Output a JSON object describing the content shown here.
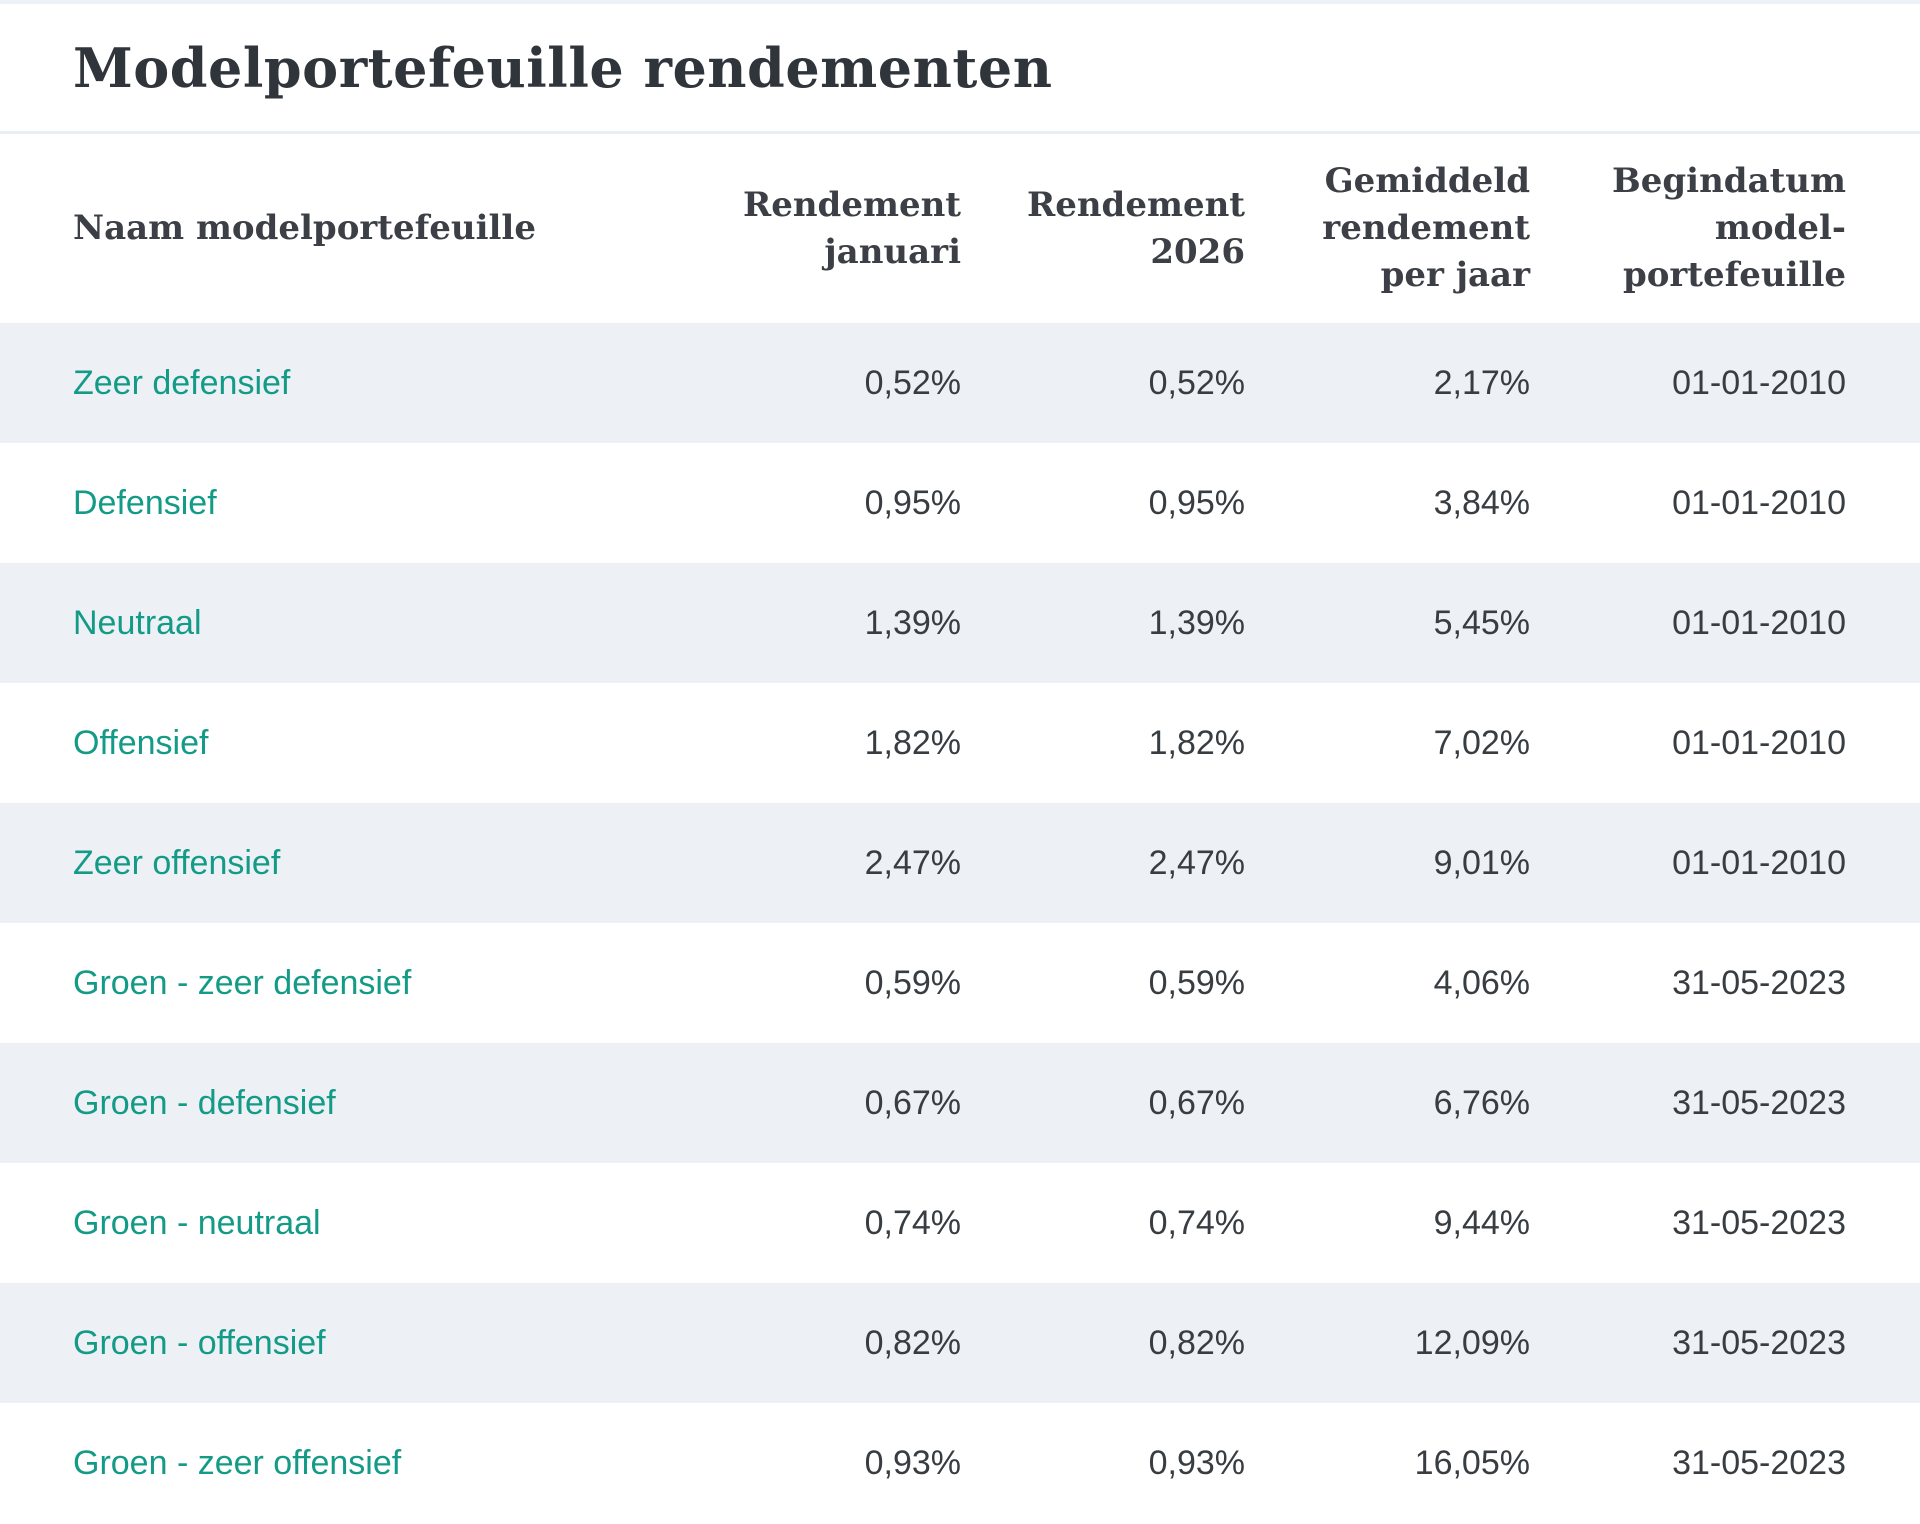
{
  "page": {
    "title": "Modelportefeuille rendementen"
  },
  "colors": {
    "accent_link": "#149b87",
    "row_alt_background": "#edf1f6",
    "divider": "#e9edf6",
    "top_strip": "#edf1f8",
    "title_text": "#2f353b",
    "header_text": "#3c4046",
    "value_text": "#383d42"
  },
  "table": {
    "columns": [
      {
        "label": "Naam modelportefeuille"
      },
      {
        "label": "Rendement\njanuari"
      },
      {
        "label": "Rendement\n2026"
      },
      {
        "label": "Gemiddeld\nrendement\nper jaar"
      },
      {
        "label": "Begindatum\nmodel-\nportefeuille"
      }
    ],
    "rows": [
      {
        "name": "Zeer defensief",
        "jan": "0,52%",
        "y2026": "0,52%",
        "avg": "2,17%",
        "start": "01-01-2010"
      },
      {
        "name": "Defensief",
        "jan": "0,95%",
        "y2026": "0,95%",
        "avg": "3,84%",
        "start": "01-01-2010"
      },
      {
        "name": "Neutraal",
        "jan": "1,39%",
        "y2026": "1,39%",
        "avg": "5,45%",
        "start": "01-01-2010"
      },
      {
        "name": "Offensief",
        "jan": "1,82%",
        "y2026": "1,82%",
        "avg": "7,02%",
        "start": "01-01-2010"
      },
      {
        "name": "Zeer offensief",
        "jan": "2,47%",
        "y2026": "2,47%",
        "avg": "9,01%",
        "start": "01-01-2010"
      },
      {
        "name": "Groen - zeer defensief",
        "jan": "0,59%",
        "y2026": "0,59%",
        "avg": "4,06%",
        "start": "31-05-2023"
      },
      {
        "name": "Groen - defensief",
        "jan": "0,67%",
        "y2026": "0,67%",
        "avg": "6,76%",
        "start": "31-05-2023"
      },
      {
        "name": "Groen - neutraal",
        "jan": "0,74%",
        "y2026": "0,74%",
        "avg": "9,44%",
        "start": "31-05-2023"
      },
      {
        "name": "Groen - offensief",
        "jan": "0,82%",
        "y2026": "0,82%",
        "avg": "12,09%",
        "start": "31-05-2023"
      },
      {
        "name": "Groen - zeer offensief",
        "jan": "0,93%",
        "y2026": "0,93%",
        "avg": "16,05%",
        "start": "31-05-2023"
      }
    ]
  }
}
